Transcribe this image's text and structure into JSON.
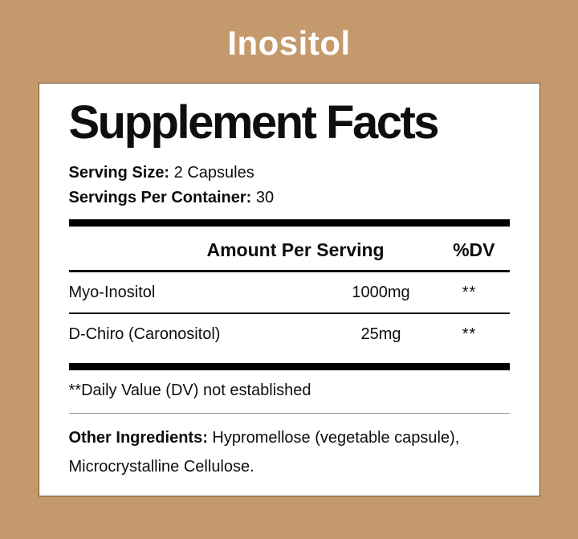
{
  "page": {
    "title": "Inositol"
  },
  "colors": {
    "background": "#c49a6d",
    "panel_background": "#ffffff",
    "panel_border": "#6f5534",
    "text": "#0e0e0e",
    "title_text": "#ffffff",
    "rule_black": "#000000",
    "rule_light_gray": "#9a9a9a"
  },
  "panel": {
    "heading": "Supplement Facts",
    "serving_size_label": "Serving Size:",
    "serving_size_value": "2 Capsules",
    "servings_per_container_label": "Servings Per Container:",
    "servings_per_container_value": "30",
    "table": {
      "headers": {
        "amount": "Amount Per Serving",
        "dv": "%DV"
      },
      "rows": [
        {
          "name": "Myo-Inositol",
          "amount": "1000mg",
          "dv": "**"
        },
        {
          "name": "D-Chiro (Caronositol)",
          "amount": "25mg",
          "dv": "**"
        }
      ]
    },
    "footnote": "**Daily Value (DV) not established",
    "other_ingredients_label": "Other Ingredients:",
    "other_ingredients_value": "Hypromellose (vegetable capsule), Microcrystalline Cellulose."
  }
}
